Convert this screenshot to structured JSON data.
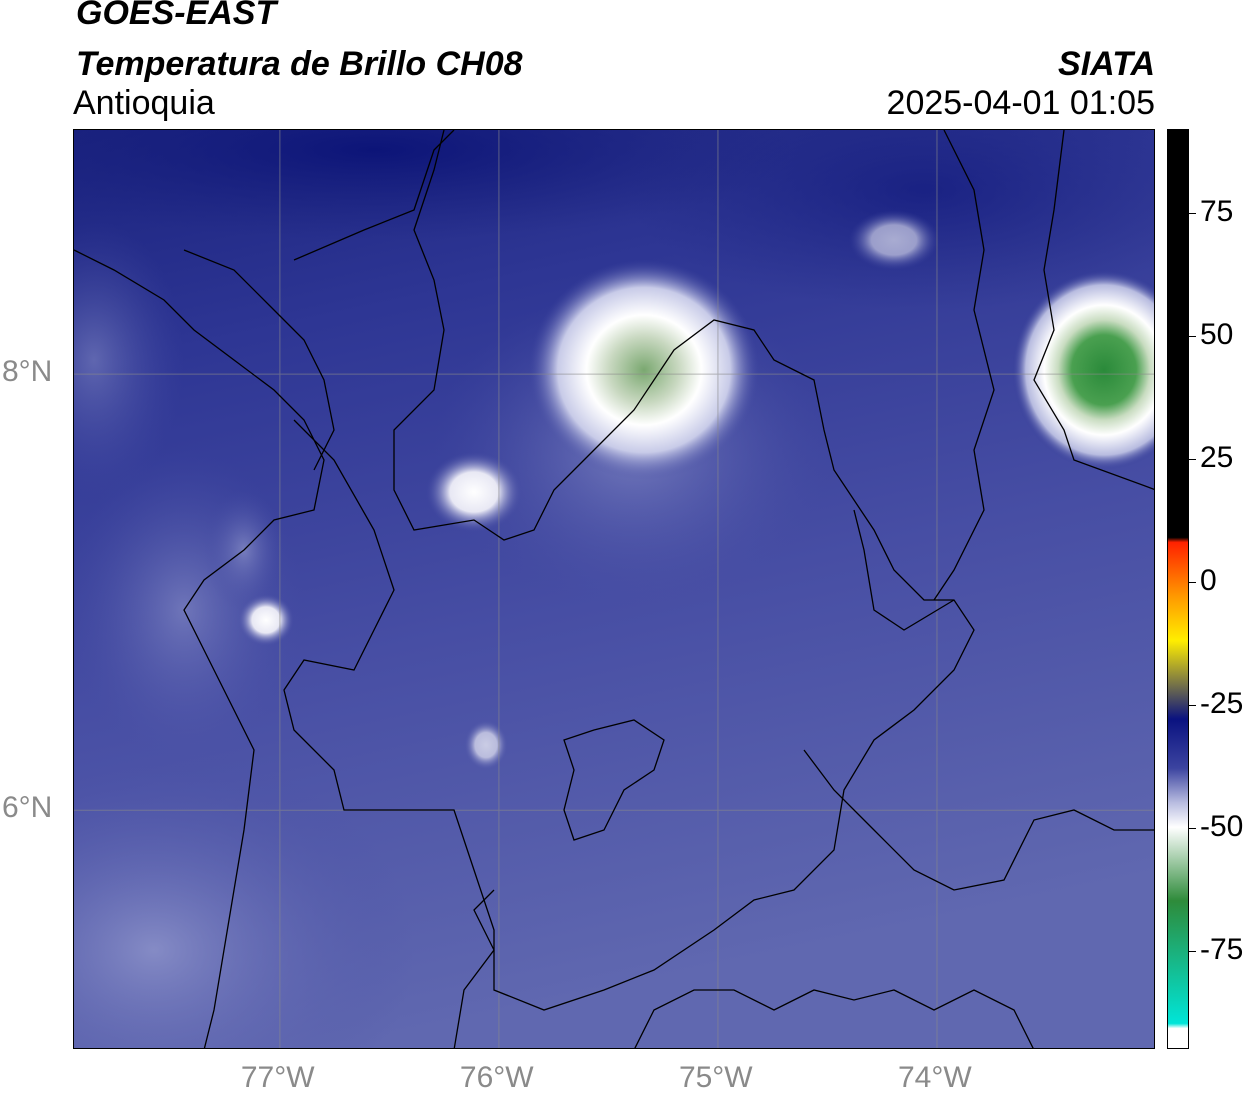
{
  "header": {
    "satellite": "GOES-EAST",
    "product": "Temperatura de Brillo CH08",
    "region": "Antioquia",
    "agency": "SIATA",
    "datetime": "2025-04-01 01:05"
  },
  "map": {
    "lon_range": [
      -77.94,
      -73.0
    ],
    "lat_range": [
      4.9,
      9.12
    ],
    "lon_ticks": [
      {
        "value": -77,
        "label": "77°W"
      },
      {
        "value": -76,
        "label": "76°W"
      },
      {
        "value": -75,
        "label": "75°W"
      },
      {
        "value": -74,
        "label": "74°W"
      }
    ],
    "lat_ticks": [
      {
        "value": 8,
        "label": "8°N"
      },
      {
        "value": 6,
        "label": "6°N"
      }
    ],
    "gridlines": true
  },
  "colorbar": {
    "range": [
      -95,
      92
    ],
    "ticks": [
      {
        "value": 75,
        "label": "75"
      },
      {
        "value": 50,
        "label": "50"
      },
      {
        "value": 25,
        "label": "25"
      },
      {
        "value": 0,
        "label": "0"
      },
      {
        "value": -25,
        "label": "-25"
      },
      {
        "value": -50,
        "label": "-50"
      },
      {
        "value": -75,
        "label": "-75"
      }
    ],
    "colors": {
      "black_segment": "#000000",
      "warm_red": "#ff2200",
      "orange": "#ff9900",
      "yellow": "#ffee00",
      "navy": "#0a1280",
      "indigo": "#3c44a0",
      "light_lavender": "#b8bce0",
      "white": "#ffffff",
      "green": "#2e8b3a",
      "cyan": "#00e5d8"
    }
  }
}
